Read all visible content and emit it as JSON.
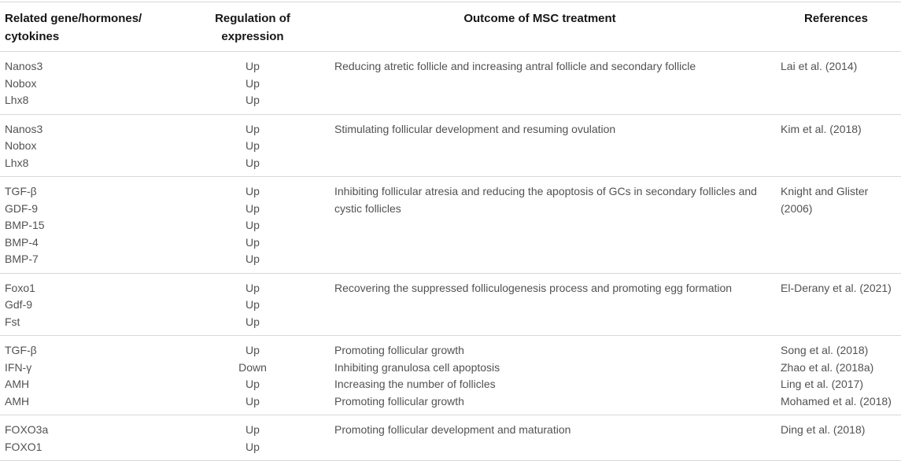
{
  "table": {
    "title": "MSC treatment outcomes table",
    "headers": [
      {
        "id": "genes",
        "lines": [
          "Related gene/hormones/",
          "cytokines"
        ]
      },
      {
        "id": "regulation",
        "lines": [
          "Regulation of",
          "expression"
        ]
      },
      {
        "id": "outcome",
        "lines": [
          "Outcome of MSC treatment"
        ]
      },
      {
        "id": "references",
        "lines": [
          "References"
        ]
      }
    ],
    "groups": [
      {
        "genes": [
          {
            "name": "Nanos3",
            "regulation": "Up"
          },
          {
            "name": "Nobox",
            "regulation": "Up"
          },
          {
            "name": "Lhx8",
            "regulation": "Up"
          }
        ],
        "outcomes": [
          "Reducing atretic follicle and increasing antral follicle and secondary follicle"
        ],
        "references": [
          "Lai et al. (2014)"
        ]
      },
      {
        "genes": [
          {
            "name": "Nanos3",
            "regulation": "Up"
          },
          {
            "name": "Nobox",
            "regulation": "Up"
          },
          {
            "name": "Lhx8",
            "regulation": "Up"
          }
        ],
        "outcomes": [
          "Stimulating follicular development and resuming ovulation"
        ],
        "references": [
          "Kim et al. (2018)"
        ]
      },
      {
        "genes": [
          {
            "name": "TGF-β",
            "regulation": "Up"
          },
          {
            "name": "GDF-9",
            "regulation": "Up"
          },
          {
            "name": "BMP-15",
            "regulation": "Up"
          },
          {
            "name": "BMP-4",
            "regulation": "Up"
          },
          {
            "name": "BMP-7",
            "regulation": "Up"
          }
        ],
        "outcomes": [
          "Inhibiting follicular atresia and reducing the apoptosis of GCs in secondary follicles and cystic follicles"
        ],
        "references": [
          "Knight and Glister (2006)"
        ]
      },
      {
        "genes": [
          {
            "name": "Foxo1",
            "regulation": "Up"
          },
          {
            "name": "Gdf-9",
            "regulation": "Up"
          },
          {
            "name": "Fst",
            "regulation": "Up"
          }
        ],
        "outcomes": [
          "Recovering the suppressed folliculogenesis process and promoting egg formation"
        ],
        "references": [
          "El-Derany et al. (2021)"
        ]
      },
      {
        "genes": [
          {
            "name": "TGF-β",
            "regulation": "Up"
          },
          {
            "name": "IFN-γ",
            "regulation": "Down"
          },
          {
            "name": "AMH",
            "regulation": "Up"
          },
          {
            "name": "AMH",
            "regulation": "Up"
          }
        ],
        "outcomes": [
          "Promoting follicular growth",
          "Inhibiting granulosa cell apoptosis",
          "Increasing the number of follicles",
          "Promoting follicular growth"
        ],
        "references": [
          "Song et al. (2018)",
          "Zhao et al. (2018a)",
          "Ling et al. (2017)",
          "Mohamed et al. (2018)"
        ]
      },
      {
        "genes": [
          {
            "name": "FOXO3a",
            "regulation": "Up"
          },
          {
            "name": "FOXO1",
            "regulation": "Up"
          }
        ],
        "outcomes": [
          "Promoting follicular development and maturation"
        ],
        "references": [
          "Ding et al. (2018)"
        ]
      }
    ]
  }
}
